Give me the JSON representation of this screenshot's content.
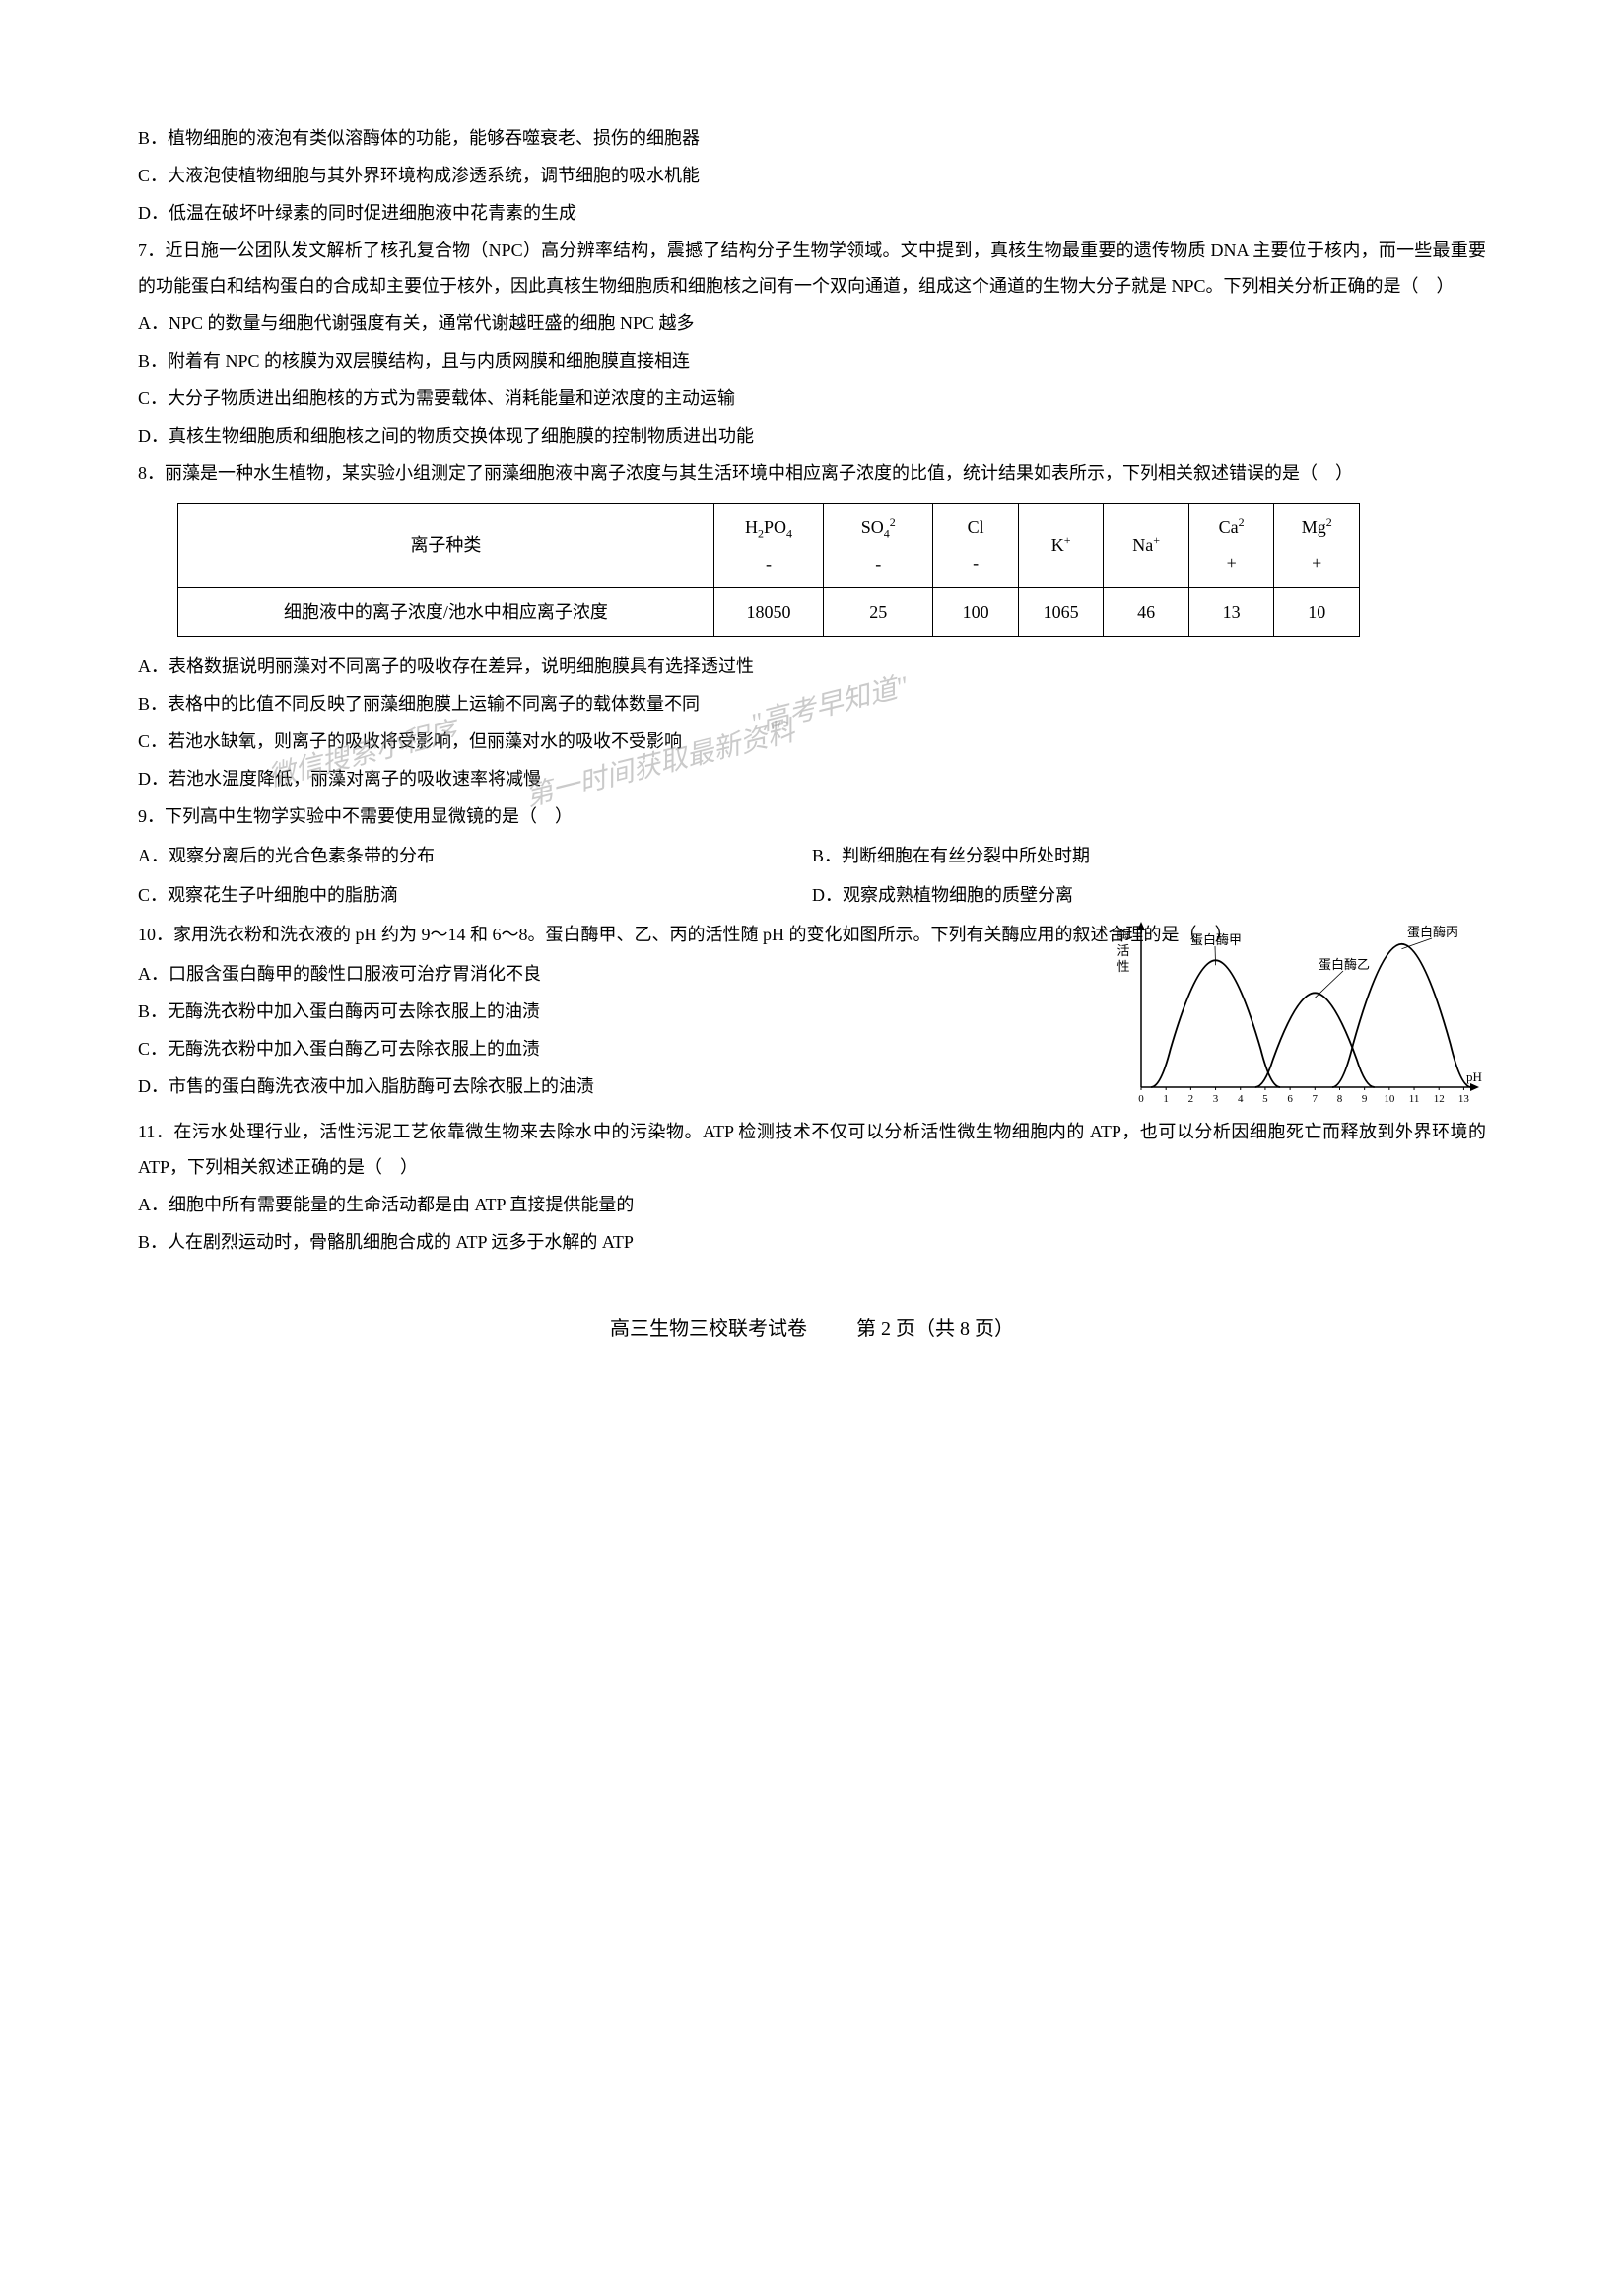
{
  "q6": {
    "optB": "B．植物细胞的液泡有类似溶酶体的功能，能够吞噬衰老、损伤的细胞器",
    "optC": "C．大液泡使植物细胞与其外界环境构成渗透系统，调节细胞的吸水机能",
    "optD": "D．低温在破坏叶绿素的同时促进细胞液中花青素的生成"
  },
  "q7": {
    "stem1": "7．近日施一公团队发文解析了核孔复合物（NPC）高分辨率结构，震撼了结构分子生物学领域。文中提到，真核生物最重要的遗传物质 DNA 主要位于核内，而一些最重要的功能蛋白和结构蛋白的合成却主要位于核外，因此真核生物细胞质和细胞核之间有一个双向通道，组成这个通道的生物大分子就是 NPC。下列相关分析正确的是（　）",
    "optA": "A．NPC 的数量与细胞代谢强度有关，通常代谢越旺盛的细胞 NPC 越多",
    "optB": "B．附着有 NPC 的核膜为双层膜结构，且与内质网膜和细胞膜直接相连",
    "optC": "C．大分子物质进出细胞核的方式为需要载体、消耗能量和逆浓度的主动运输",
    "optD": "D．真核生物细胞质和细胞核之间的物质交换体现了细胞膜的控制物质进出功能"
  },
  "q8": {
    "stem": "8．丽藻是一种水生植物，某实验小组测定了丽藻细胞液中离子浓度与其生活环境中相应离子浓度的比值，统计结果如表所示，下列相关叙述错误的是（　）",
    "table": {
      "header_label": "离子种类",
      "row_label": "细胞液中的离子浓度/池水中相应离子浓度",
      "columns": [
        {
          "head_html": "H<span class='sub'>2</span>PO<span class='sub'>4</span><br>-",
          "value": "18050"
        },
        {
          "head_html": "SO<span class='sub'>4</span><span class='sup'>2</span><br>-",
          "value": "25"
        },
        {
          "head_html": "Cl<br>-",
          "value": "100"
        },
        {
          "head_html": "K<span class='sup'>+</span>",
          "value": "1065"
        },
        {
          "head_html": "Na<span class='sup'>+</span>",
          "value": "46"
        },
        {
          "head_html": "Ca<span class='sup'>2</span><br>+",
          "value": "13"
        },
        {
          "head_html": "Mg<span class='sup'>2</span><br>+",
          "value": "10"
        }
      ]
    },
    "optA": "A．表格数据说明丽藻对不同离子的吸收存在差异，说明细胞膜具有选择透过性",
    "optB": "B．表格中的比值不同反映了丽藻细胞膜上运输不同离子的载体数量不同",
    "optC": "C．若池水缺氧，则离子的吸收将受影响，但丽藻对水的吸收不受影响",
    "optD": "D．若池水温度降低，丽藻对离子的吸收速率将减慢"
  },
  "q9": {
    "stem": "9．下列高中生物学实验中不需要使用显微镜的是（　）",
    "optA": "A．观察分离后的光合色素条带的分布",
    "optB": "B．判断细胞在有丝分裂中所处时期",
    "optC": "C．观察花生子叶细胞中的脂肪滴",
    "optD": "D．观察成熟植物细胞的质壁分离"
  },
  "q10": {
    "stem": "10．家用洗衣粉和洗衣液的 pH 约为 9～14 和 6～8。蛋白酶甲、乙、丙的活性随 pH 的变化如图所示。下列有关酶应用的叙述合理的是（　）",
    "optA": "A．口服含蛋白酶甲的酸性口服液可治疗胃消化不良",
    "optB": "B．无酶洗衣粉中加入蛋白酶丙可去除衣服上的油渍",
    "optC": "C．无酶洗衣粉中加入蛋白酶乙可去除衣服上的血渍",
    "optD": "D．市售的蛋白酶洗衣液中加入脂肪酶可去除衣服上的油渍",
    "chart": {
      "y_label": "酶活性",
      "x_label": "pH",
      "curves": [
        {
          "label": "蛋白酶甲",
          "peak_x": 3,
          "color": "#000000"
        },
        {
          "label": "蛋白酶乙",
          "peak_x": 7,
          "color": "#000000"
        },
        {
          "label": "蛋白酶丙",
          "peak_x": 10.5,
          "color": "#000000"
        }
      ],
      "x_ticks": [
        "0",
        "1",
        "2",
        "3",
        "4",
        "5",
        "6",
        "7",
        "8",
        "9",
        "10",
        "11",
        "12",
        "13"
      ]
    }
  },
  "q11": {
    "stem": "11．在污水处理行业，活性污泥工艺依靠微生物来去除水中的污染物。ATP 检测技术不仅可以分析活性微生物细胞内的 ATP，也可以分析因细胞死亡而释放到外界环境的 ATP，下列相关叙述正确的是（　）",
    "optA": "A．细胞中所有需要能量的生命活动都是由 ATP 直接提供能量的",
    "optB": "B．人在剧烈运动时，骨骼肌细胞合成的 ATP 远多于水解的 ATP"
  },
  "watermarks": {
    "w1": "\"高考早知道\"",
    "w2": "微信搜索小程序",
    "w3": "第一时间获取最新资料"
  },
  "footer": {
    "left": "高三生物三校联考试卷",
    "right": "第 2 页（共 8 页）"
  },
  "colors": {
    "text": "#000000",
    "background": "#ffffff",
    "watermark": "rgba(150,150,150,0.5)"
  }
}
